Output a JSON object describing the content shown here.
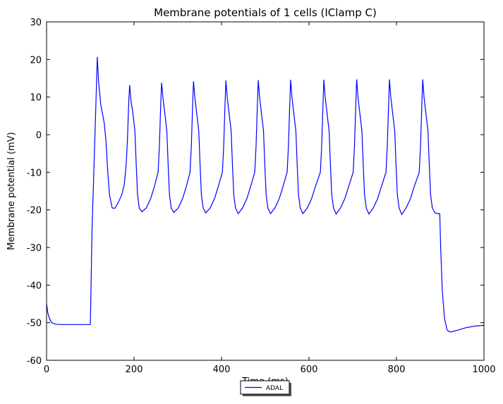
{
  "chart_data": {
    "type": "line",
    "title": "Membrane potentials of 1 cells (IClamp C)",
    "x_label": "Time (ms)",
    "y_label": "Membrane potential (mV)",
    "x": [
      0,
      3,
      7,
      12,
      20,
      30,
      100,
      101,
      104,
      108,
      112,
      116,
      119,
      124,
      132,
      136,
      140,
      144,
      150,
      156,
      164,
      172,
      178,
      182,
      185,
      188,
      190,
      193,
      197,
      202,
      205,
      208,
      212,
      218,
      228,
      238,
      246,
      255,
      258,
      261,
      263,
      266,
      270,
      275,
      278,
      281,
      285,
      291,
      301,
      311,
      319,
      328,
      331,
      334,
      336,
      339,
      343,
      348,
      351,
      354,
      358,
      364,
      374,
      384,
      392,
      402,
      405,
      408,
      410,
      413,
      417,
      422,
      425,
      428,
      432,
      438,
      448,
      458,
      466,
      476,
      479,
      482,
      484,
      487,
      491,
      496,
      499,
      502,
      506,
      512,
      522,
      532,
      540,
      550,
      553,
      556,
      558,
      561,
      565,
      570,
      573,
      576,
      580,
      586,
      596,
      606,
      614,
      626,
      629,
      632,
      634,
      637,
      641,
      646,
      649,
      652,
      656,
      662,
      672,
      682,
      690,
      701,
      704,
      707,
      709,
      712,
      716,
      721,
      724,
      727,
      731,
      737,
      747,
      757,
      765,
      776,
      779,
      782,
      784,
      787,
      791,
      796,
      799,
      802,
      806,
      812,
      822,
      832,
      840,
      852,
      855,
      858,
      860,
      863,
      867,
      872,
      875,
      878,
      882,
      888,
      895,
      899,
      901,
      905,
      910,
      916,
      923,
      940,
      960,
      980,
      1000
    ],
    "series": [
      {
        "name": "ADAL",
        "color": "#0000ff",
        "values": [
          -45,
          -47.5,
          -49,
          -50,
          -50.4,
          -50.5,
          -50.5,
          -45,
          -25,
          -10,
          5,
          20.7,
          14,
          8,
          3,
          -2,
          -10,
          -16,
          -19.5,
          -19.6,
          -18,
          -16,
          -13,
          -8,
          -1,
          9,
          13.2,
          9,
          6,
          1,
          -8,
          -16,
          -19.5,
          -20.5,
          -19.5,
          -17,
          -14,
          -10,
          -3,
          8,
          13.8,
          10,
          6,
          1,
          -8,
          -16,
          -19.5,
          -20.7,
          -19.5,
          -17,
          -14,
          -10,
          -3,
          8,
          14.2,
          10,
          6,
          1,
          -8,
          -16,
          -19.5,
          -20.8,
          -19.5,
          -17,
          -14,
          -10,
          -3,
          8,
          14.4,
          10,
          6,
          1,
          -8,
          -16,
          -19.5,
          -21,
          -19.5,
          -17,
          -14,
          -10,
          -3,
          8,
          14.5,
          10,
          6,
          1,
          -8,
          -16,
          -19.5,
          -21,
          -19.5,
          -17,
          -14,
          -10,
          -3,
          8,
          14.6,
          10,
          6,
          1,
          -8,
          -16,
          -19.5,
          -21,
          -19.5,
          -17,
          -14,
          -10,
          -3,
          8,
          14.6,
          10,
          6,
          1,
          -8,
          -16,
          -19.5,
          -21.1,
          -19.5,
          -17,
          -14,
          -10,
          -3,
          8,
          14.7,
          10,
          6,
          1,
          -8,
          -16,
          -19.5,
          -21.1,
          -19.5,
          -17,
          -14,
          -10,
          -3,
          8,
          14.7,
          10,
          6,
          1,
          -8,
          -16,
          -19.5,
          -21.2,
          -19.5,
          -17,
          -14,
          -10,
          -3,
          8,
          14.7,
          10,
          6,
          1,
          -8,
          -16,
          -19.5,
          -20.8,
          -21,
          -21,
          -30,
          -42,
          -49,
          -52,
          -52.5,
          -52,
          -51.3,
          -50.9,
          -50.7
        ]
      }
    ],
    "xlim": [
      0,
      1000
    ],
    "xticks": [
      0,
      200,
      400,
      600,
      800,
      1000
    ],
    "ylim": [
      -60,
      30
    ],
    "yticks": [
      -60,
      -50,
      -40,
      -30,
      -20,
      -10,
      0,
      10,
      20,
      30
    ],
    "grid": false,
    "legend": "bottom"
  }
}
